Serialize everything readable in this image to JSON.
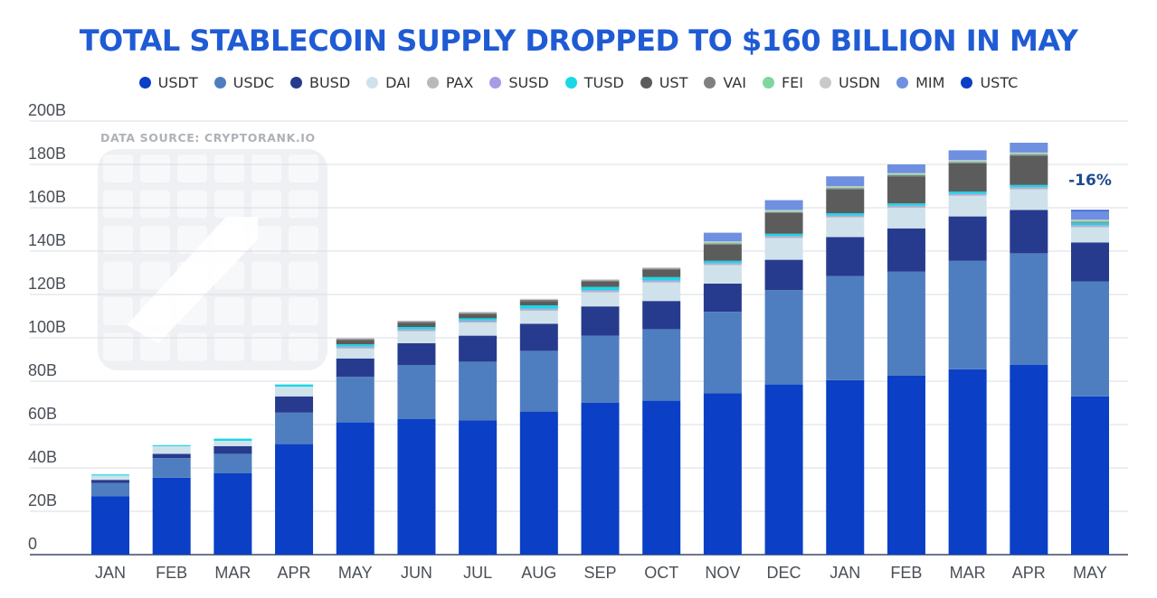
{
  "title": "TOTAL STABLECOIN SUPPLY DROPPED TO $160 BILLION IN MAY",
  "source_note": "DATA SOURCE: CRYPTORANK.IO",
  "annotation": "-16%",
  "chart_data": {
    "type": "bar",
    "stacked": true,
    "title": "TOTAL STABLECOIN SUPPLY DROPPED TO $160 BILLION IN MAY",
    "xlabel": "",
    "ylabel": "",
    "ylim": [
      0,
      200
    ],
    "yticks": [
      "0",
      "20B",
      "40B",
      "60B",
      "80B",
      "100B",
      "120B",
      "140B",
      "160B",
      "180B",
      "200B"
    ],
    "grid": true,
    "legend_position": "top",
    "categories": [
      "JAN",
      "FEB",
      "MAR",
      "APR",
      "MAY",
      "JUN",
      "JUL",
      "AUG",
      "SEP",
      "OCT",
      "NOV",
      "DEC",
      "JAN",
      "FEB",
      "MAR",
      "APR",
      "MAY"
    ],
    "series": [
      {
        "name": "USDT",
        "color": "#0a3fc6",
        "values": [
          27,
          35.5,
          37.5,
          51,
          61,
          62.5,
          62,
          66,
          70,
          71,
          74.5,
          78.5,
          80.5,
          82.5,
          85.5,
          87.5,
          73
        ]
      },
      {
        "name": "USDC",
        "color": "#4f7ec0",
        "values": [
          6,
          9,
          9,
          14.5,
          21,
          25,
          27,
          28,
          31,
          33,
          37.5,
          43.5,
          48,
          48,
          50,
          51.5,
          53
        ]
      },
      {
        "name": "BUSD",
        "color": "#273b8e",
        "values": [
          1.5,
          2,
          3.5,
          7.5,
          8.5,
          10,
          12,
          12.5,
          13.5,
          13,
          13,
          14,
          18,
          20,
          20.5,
          20,
          18
        ]
      },
      {
        "name": "DAI",
        "color": "#cfe2eb",
        "values": [
          2,
          3.5,
          2.5,
          4.5,
          4.5,
          5.5,
          6,
          6,
          6.5,
          8.5,
          8.5,
          10,
          9,
          9.5,
          9.5,
          9.5,
          7
        ]
      },
      {
        "name": "PAX",
        "color": "#b9b9b9",
        "values": [
          0,
          0,
          0,
          0,
          0.5,
          0.5,
          0.5,
          0.5,
          0.5,
          0.5,
          0.5,
          0.5,
          0.5,
          0.5,
          0.5,
          0.5,
          0.5
        ]
      },
      {
        "name": "SUSD",
        "color": "#a69be6",
        "values": [
          0,
          0,
          0,
          0,
          0.5,
          0.5,
          0.5,
          0.5,
          0.5,
          0.5,
          0.5,
          0.5,
          0.5,
          0.5,
          0.5,
          0.5,
          0.5
        ]
      },
      {
        "name": "TUSD",
        "color": "#1ad7e6",
        "values": [
          0.5,
          0.5,
          1,
          1,
          1,
          1,
          1,
          1.5,
          1.5,
          1.5,
          1,
          1,
          1,
          1,
          1,
          1,
          1
        ]
      },
      {
        "name": "UST",
        "color": "#5c5c5c",
        "values": [
          0,
          0,
          0,
          0,
          2,
          2,
          2,
          2,
          2.5,
          3.5,
          7.5,
          9.5,
          11,
          12.5,
          13,
          13.5,
          0
        ]
      },
      {
        "name": "VAI",
        "color": "#808080",
        "values": [
          0,
          0,
          0,
          0,
          0.5,
          0.5,
          0.5,
          0.5,
          0.5,
          0.5,
          0.5,
          0.5,
          0.5,
          0.5,
          0.5,
          0.5,
          0.5
        ]
      },
      {
        "name": "FEI",
        "color": "#7fd6a0",
        "values": [
          0,
          0,
          0,
          0,
          0,
          0,
          0,
          0,
          0,
          0,
          0.5,
          0.5,
          0.5,
          0.5,
          0.5,
          0.5,
          0.5
        ]
      },
      {
        "name": "USDN",
        "color": "#c9c9c9",
        "values": [
          0,
          0,
          0,
          0,
          0.5,
          0.5,
          0.5,
          0.5,
          0.5,
          0.5,
          0.5,
          0.5,
          0.5,
          0.5,
          0.5,
          0.5,
          0.5
        ]
      },
      {
        "name": "MIM",
        "color": "#6f8fe0",
        "values": [
          0,
          0,
          0,
          0,
          0,
          0,
          0,
          0,
          0,
          0,
          4,
          4.5,
          4.5,
          4,
          4.5,
          4.5,
          4
        ]
      },
      {
        "name": "USTC",
        "color": "#0a3fc6",
        "values": [
          0,
          0,
          0,
          0,
          0,
          0,
          0,
          0,
          0,
          0,
          0,
          0,
          0,
          0,
          0,
          0,
          0.5
        ]
      }
    ]
  }
}
